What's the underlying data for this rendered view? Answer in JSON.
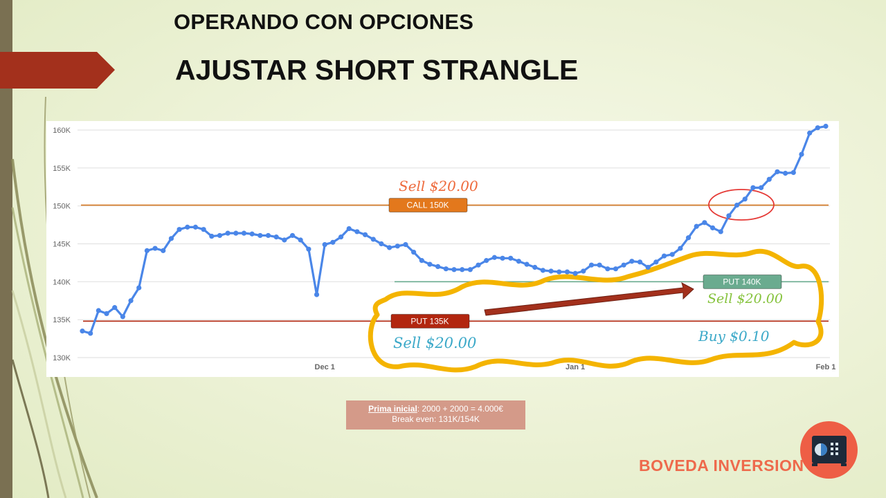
{
  "slide": {
    "subtitle": "OPERANDO CON OPCIONES",
    "title": "AJUSTAR SHORT STRANGLE",
    "info_label": "Prima inicial",
    "info_line1": ": 2000 + 2000 = 4.000€",
    "info_line2": "Break even: 131K/154K",
    "brand": "BOVEDA INVERSION",
    "colors": {
      "tab": "#a3301c",
      "brand": "#ee6a4c",
      "info_box": "#d49a89"
    }
  },
  "chart_data": {
    "type": "line",
    "ylim": [
      130000,
      160000
    ],
    "yticks": [
      130000,
      135000,
      140000,
      145000,
      150000,
      155000,
      160000
    ],
    "ytick_labels": [
      "130K",
      "135K",
      "140K",
      "145K",
      "150K",
      "155K",
      "160K"
    ],
    "xticks": [
      {
        "label": "Dec 1",
        "index": 30
      },
      {
        "label": "Jan 1",
        "index": 61
      },
      {
        "label": "Feb 1",
        "index": 92
      }
    ],
    "grid": true,
    "series": [
      {
        "color": "#4a86e8",
        "values": [
          133500,
          133200,
          136200,
          135800,
          136600,
          135400,
          137500,
          139200,
          144100,
          144400,
          144100,
          145700,
          146900,
          147200,
          147200,
          146900,
          146000,
          146100,
          146400,
          146400,
          146400,
          146300,
          146100,
          146100,
          145900,
          145500,
          146100,
          145500,
          144300,
          138300,
          144900,
          145200,
          145900,
          147000,
          146600,
          146200,
          145600,
          145000,
          144500,
          144700,
          144900,
          143900,
          142800,
          142300,
          142000,
          141700,
          141600,
          141600,
          141600,
          142200,
          142800,
          143200,
          143100,
          143100,
          142700,
          142300,
          141900,
          141500,
          141400,
          141300,
          141300,
          141100,
          141400,
          142200,
          142200,
          141700,
          141700,
          142200,
          142700,
          142600,
          141900,
          142600,
          143400,
          143600,
          144400,
          145800,
          147300,
          147800,
          147100,
          146600,
          148700,
          150100,
          150900,
          152400,
          152400,
          153500,
          154500,
          154300,
          154400,
          156800,
          159600,
          160300,
          160500
        ]
      }
    ],
    "levels": [
      {
        "value": 150100,
        "label": "CALL 150K",
        "color": "#e3781c",
        "label_bg": "#e3781c",
        "line_color": "#d4761e",
        "annotation": "Sell $20.00",
        "annotation_color": "#ee6a3c"
      },
      {
        "value": 140000,
        "label": "PUT 140K",
        "color": "#6aab8f",
        "label_bg": "#6aab8f",
        "line_color": "#6aab8f",
        "annotation": "Sell $20.00",
        "annotation_color": "#84c23a"
      },
      {
        "value": 134800,
        "label": "PUT 135K",
        "color": "#b2260f",
        "label_bg": "#b2260f",
        "line_color": "#b2260f",
        "annotation": "Sell $20.00",
        "annotation_color": "#3aa8c8"
      }
    ],
    "extra_annotation": {
      "text": "Buy $0.10",
      "color": "#3aa8c8"
    }
  }
}
